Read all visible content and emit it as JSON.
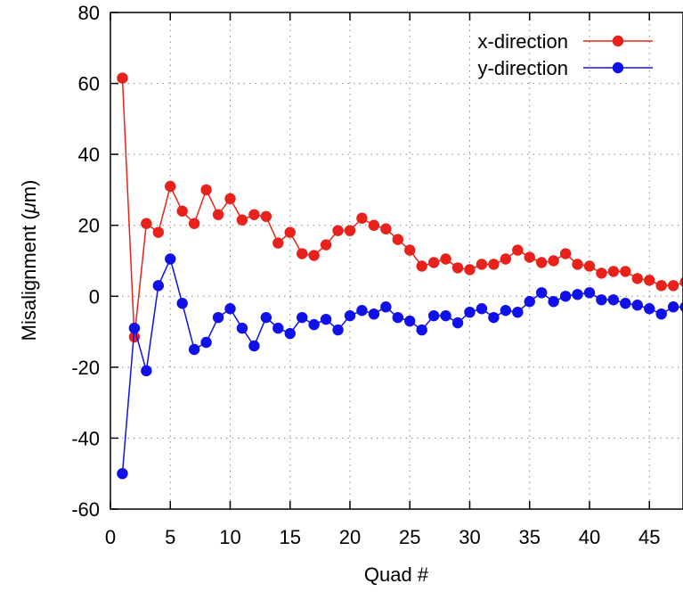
{
  "chart_data": {
    "type": "line",
    "xlabel": "Quad #",
    "ylabel_prefix": "Misalignment (",
    "ylabel_unit_symbol": "μ",
    "ylabel_suffix": "m)",
    "xlim": [
      0,
      48
    ],
    "ylim": [
      -60,
      80
    ],
    "xticks": [
      0,
      5,
      10,
      15,
      20,
      25,
      30,
      35,
      40,
      45
    ],
    "yticks": [
      -60,
      -40,
      -20,
      0,
      20,
      40,
      60,
      80
    ],
    "grid": true,
    "legend_position": "top-right",
    "x": [
      1,
      2,
      3,
      4,
      5,
      6,
      7,
      8,
      9,
      10,
      11,
      12,
      13,
      14,
      15,
      16,
      17,
      18,
      19,
      20,
      21,
      22,
      23,
      24,
      25,
      26,
      27,
      28,
      29,
      30,
      31,
      32,
      33,
      34,
      35,
      36,
      37,
      38,
      39,
      40,
      41,
      42,
      43,
      44,
      45,
      46,
      47,
      48
    ],
    "series": [
      {
        "name": "x-direction",
        "color": "#e8221a",
        "values": [
          61.5,
          -11.5,
          20.5,
          18,
          31,
          24,
          20.5,
          30,
          23,
          27.5,
          21.5,
          23,
          22.5,
          15,
          18,
          12,
          11.5,
          14.5,
          18.5,
          18.5,
          22,
          20,
          19,
          16,
          13,
          8.5,
          9.5,
          10.5,
          8,
          7.5,
          9,
          9,
          10.5,
          13,
          11,
          9.5,
          10,
          12,
          9,
          8.5,
          6.5,
          7,
          7,
          5,
          4.5,
          3,
          3,
          4
        ]
      },
      {
        "name": "y-direction",
        "color": "#1010e8",
        "values": [
          -50,
          -9,
          -21,
          3,
          10.5,
          -2,
          -15,
          -13,
          -6,
          -3.5,
          -9,
          -14,
          -6,
          -9,
          -10.5,
          -6,
          -8,
          -6.5,
          -9.5,
          -5.5,
          -4,
          -5,
          -3,
          -6,
          -7,
          -9.5,
          -5.5,
          -5.5,
          -7.5,
          -4.5,
          -3.5,
          -6,
          -4,
          -4.5,
          -1.5,
          1,
          -1.5,
          0,
          0.5,
          1,
          -1,
          -1,
          -2,
          -2.5,
          -3.5,
          -5,
          -3,
          -3
        ]
      }
    ]
  }
}
